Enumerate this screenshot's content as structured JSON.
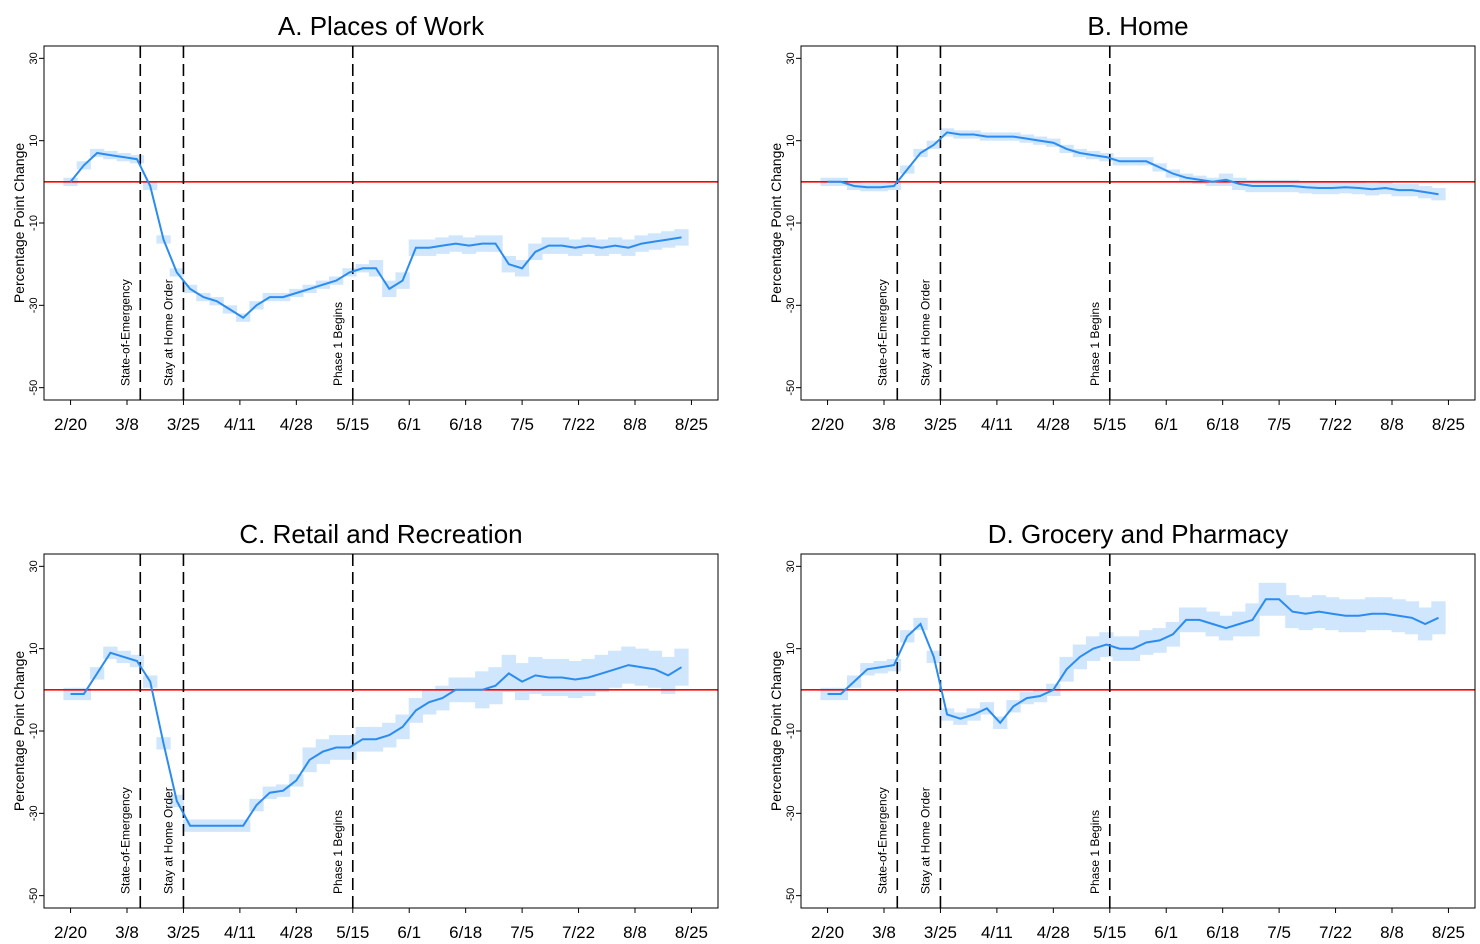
{
  "chart_data": [
    {
      "type": "line",
      "title": "A. Places of Work",
      "y_label": "Percentage Point Change",
      "x": [
        "2/20",
        "2/24",
        "2/28",
        "3/3",
        "3/7",
        "3/11",
        "3/15",
        "3/19",
        "3/23",
        "3/27",
        "3/31",
        "4/4",
        "4/8",
        "4/12",
        "4/16",
        "4/20",
        "4/24",
        "4/28",
        "5/2",
        "5/6",
        "5/10",
        "5/14",
        "5/18",
        "5/22",
        "5/26",
        "5/30",
        "6/3",
        "6/7",
        "6/11",
        "6/15",
        "6/19",
        "6/23",
        "6/27",
        "7/1",
        "7/5",
        "7/9",
        "7/13",
        "7/17",
        "7/21",
        "7/25",
        "7/29",
        "8/2",
        "8/6",
        "8/10",
        "8/14",
        "8/18",
        "8/22"
      ],
      "series": [
        {
          "color": "#2b8cf0",
          "band_color": "#cfe6fd",
          "values": [
            0,
            4,
            7,
            6.5,
            6,
            5.5,
            -1,
            -14,
            -22,
            -26,
            -28,
            -29,
            -31,
            -33,
            -30,
            -28,
            -28,
            -27,
            -26,
            -25,
            -24,
            -22,
            -21,
            -21,
            -26,
            -24,
            -16,
            -16,
            -15.5,
            -15,
            -15.5,
            -15,
            -15,
            -20,
            -21,
            -17,
            -15.5,
            -15.5,
            -16,
            -15.5,
            -16,
            -15.5,
            -16,
            -15,
            -14.5,
            -14,
            -13.5
          ],
          "error": [
            1,
            1,
            1,
            1,
            1,
            1,
            1,
            1,
            1,
            1,
            1,
            1,
            1,
            1,
            1,
            1,
            1,
            1,
            1,
            1,
            1,
            1,
            1,
            2,
            2,
            2,
            2,
            2,
            2,
            2,
            2,
            2,
            2,
            2,
            2,
            2,
            2,
            2,
            2,
            2,
            2,
            2,
            2,
            2,
            2,
            2,
            2
          ]
        }
      ],
      "hline": {
        "value": 0,
        "color": "#ff0000"
      },
      "events": [
        {
          "x": "3/12",
          "label": "State-of-Emergency"
        },
        {
          "x": "3/25",
          "label": "Stay at Home Order"
        },
        {
          "x": "5/15",
          "label": "Phase 1 Begins"
        }
      ],
      "xlim": [
        "2/12",
        "9/2"
      ],
      "xticks": [
        "2/20",
        "3/8",
        "3/25",
        "4/11",
        "4/28",
        "5/15",
        "6/1",
        "6/18",
        "7/5",
        "7/22",
        "8/8",
        "8/25"
      ],
      "ylim": [
        -53,
        33
      ],
      "yticks": [
        30,
        10,
        -10,
        -30,
        -50
      ]
    },
    {
      "type": "line",
      "title": "B. Home",
      "y_label": "Percentage Point Change",
      "x": [
        "2/20",
        "2/24",
        "2/28",
        "3/3",
        "3/7",
        "3/11",
        "3/15",
        "3/19",
        "3/23",
        "3/27",
        "3/31",
        "4/4",
        "4/8",
        "4/12",
        "4/16",
        "4/20",
        "4/24",
        "4/28",
        "5/2",
        "5/6",
        "5/10",
        "5/14",
        "5/18",
        "5/22",
        "5/26",
        "5/30",
        "6/3",
        "6/7",
        "6/11",
        "6/15",
        "6/19",
        "6/23",
        "6/27",
        "7/1",
        "7/5",
        "7/9",
        "7/13",
        "7/17",
        "7/21",
        "7/25",
        "7/29",
        "8/2",
        "8/6",
        "8/10",
        "8/14",
        "8/18",
        "8/22"
      ],
      "series": [
        {
          "color": "#2b8cf0",
          "band_color": "#cfe6fd",
          "values": [
            0,
            0,
            -1,
            -1.3,
            -1.3,
            -1,
            3,
            7,
            9,
            12,
            11.5,
            11.5,
            11,
            11,
            11,
            10.5,
            10,
            9.5,
            8,
            7,
            6.5,
            6,
            5,
            5,
            5,
            3.5,
            2,
            1,
            0.5,
            0,
            0.5,
            -0.5,
            -1,
            -1,
            -1,
            -1,
            -1.3,
            -1.5,
            -1.5,
            -1.3,
            -1.5,
            -1.8,
            -1.5,
            -2,
            -2,
            -2.5,
            -3
          ],
          "error": [
            1,
            1,
            1,
            1,
            1,
            1,
            1,
            1,
            1,
            1,
            1,
            1,
            1,
            1,
            1,
            1,
            1,
            1,
            1,
            1,
            1,
            1,
            1,
            1,
            1,
            1,
            1,
            1,
            1,
            1,
            1.5,
            1.5,
            1.5,
            1.5,
            1.5,
            1.5,
            1.5,
            1.5,
            1.5,
            1.5,
            1.5,
            1.5,
            1.5,
            1.5,
            1.5,
            1.5,
            1.5
          ]
        }
      ],
      "hline": {
        "value": 0,
        "color": "#ff0000"
      },
      "events": [
        {
          "x": "3/12",
          "label": "State-of-Emergency"
        },
        {
          "x": "3/25",
          "label": "Stay at Home Order"
        },
        {
          "x": "5/15",
          "label": "Phase 1 Begins"
        }
      ],
      "xlim": [
        "2/12",
        "9/2"
      ],
      "xticks": [
        "2/20",
        "3/8",
        "3/25",
        "4/11",
        "4/28",
        "5/15",
        "6/1",
        "6/18",
        "7/5",
        "7/22",
        "8/8",
        "8/25"
      ],
      "ylim": [
        -53,
        33
      ],
      "yticks": [
        30,
        10,
        -10,
        -30,
        -50
      ]
    },
    {
      "type": "line",
      "title": "C. Retail and Recreation",
      "y_label": "Percentage Point Change",
      "x": [
        "2/20",
        "2/24",
        "2/28",
        "3/3",
        "3/7",
        "3/11",
        "3/15",
        "3/19",
        "3/23",
        "3/27",
        "3/31",
        "4/4",
        "4/8",
        "4/12",
        "4/16",
        "4/20",
        "4/24",
        "4/28",
        "5/2",
        "5/6",
        "5/10",
        "5/14",
        "5/18",
        "5/22",
        "5/26",
        "5/30",
        "6/3",
        "6/7",
        "6/11",
        "6/15",
        "6/19",
        "6/23",
        "6/27",
        "7/1",
        "7/5",
        "7/9",
        "7/13",
        "7/17",
        "7/21",
        "7/25",
        "7/29",
        "8/2",
        "8/6",
        "8/10",
        "8/14",
        "8/18",
        "8/22"
      ],
      "series": [
        {
          "color": "#2b8cf0",
          "band_color": "#cfe6fd",
          "values": [
            -1,
            -1,
            4,
            9,
            8,
            7,
            2,
            -13,
            -27,
            -33,
            -33,
            -33,
            -33,
            -33,
            -28,
            -25,
            -24.5,
            -22,
            -17,
            -15,
            -14,
            -14,
            -12,
            -12,
            -11,
            -9,
            -5,
            -3,
            -2,
            0,
            0,
            0,
            1,
            4,
            2,
            3.5,
            3,
            3,
            2.5,
            3,
            4,
            5,
            6,
            5.5,
            5,
            3.5,
            5.5
          ],
          "error": [
            1.5,
            1.5,
            1.5,
            1.5,
            1.5,
            1.5,
            1.5,
            1.5,
            1.5,
            1.5,
            1.5,
            1.5,
            1.5,
            1.5,
            1.5,
            1.5,
            1.5,
            1.5,
            3,
            3,
            3,
            3,
            3,
            3,
            3,
            3,
            3,
            3,
            3,
            3,
            3,
            4.5,
            4.5,
            4.5,
            4.5,
            4.5,
            4.5,
            4.5,
            4.5,
            4.5,
            4.5,
            4.5,
            4.5,
            4.5,
            4.5,
            4.5,
            4.5
          ]
        }
      ],
      "hline": {
        "value": 0,
        "color": "#ff0000"
      },
      "events": [
        {
          "x": "3/12",
          "label": "State-of-Emergency"
        },
        {
          "x": "3/25",
          "label": "Stay at Home Order"
        },
        {
          "x": "5/15",
          "label": "Phase 1 Begins"
        }
      ],
      "xlim": [
        "2/12",
        "9/2"
      ],
      "xticks": [
        "2/20",
        "3/8",
        "3/25",
        "4/11",
        "4/28",
        "5/15",
        "6/1",
        "6/18",
        "7/5",
        "7/22",
        "8/8",
        "8/25"
      ],
      "ylim": [
        -53,
        33
      ],
      "yticks": [
        30,
        10,
        -10,
        -30,
        -50
      ]
    },
    {
      "type": "line",
      "title": "D. Grocery and Pharmacy",
      "y_label": "Percentage Point Change",
      "x": [
        "2/20",
        "2/24",
        "2/28",
        "3/3",
        "3/7",
        "3/11",
        "3/15",
        "3/19",
        "3/23",
        "3/27",
        "3/31",
        "4/4",
        "4/8",
        "4/12",
        "4/16",
        "4/20",
        "4/24",
        "4/28",
        "5/2",
        "5/6",
        "5/10",
        "5/14",
        "5/18",
        "5/22",
        "5/26",
        "5/30",
        "6/3",
        "6/7",
        "6/11",
        "6/15",
        "6/19",
        "6/23",
        "6/27",
        "7/1",
        "7/5",
        "7/9",
        "7/13",
        "7/17",
        "7/21",
        "7/25",
        "7/29",
        "8/2",
        "8/6",
        "8/10",
        "8/14",
        "8/18",
        "8/22"
      ],
      "series": [
        {
          "color": "#2b8cf0",
          "band_color": "#cfe6fd",
          "values": [
            -1,
            -1,
            2,
            5,
            5.5,
            6,
            13,
            16,
            8,
            -6,
            -7,
            -6,
            -4.5,
            -8,
            -4,
            -2,
            -1.5,
            0,
            5,
            8,
            10,
            11,
            10,
            10,
            11.5,
            12,
            13.5,
            17,
            17,
            16,
            15,
            16,
            17,
            22,
            22,
            19,
            18.5,
            19,
            18.5,
            18,
            18,
            18.5,
            18.5,
            18,
            17.5,
            16,
            17.5
          ],
          "error": [
            1.5,
            1.5,
            1.5,
            1.5,
            1.5,
            1.5,
            1.5,
            1.5,
            1.5,
            1.5,
            1.5,
            1.5,
            1.5,
            1.5,
            1.5,
            1.5,
            1.5,
            1.5,
            3,
            3,
            3,
            3,
            3,
            3,
            3,
            3,
            3,
            3,
            3,
            3,
            3,
            3,
            4,
            4,
            4,
            4,
            4,
            4,
            4,
            4,
            4,
            4,
            4,
            4,
            4,
            4,
            4
          ]
        }
      ],
      "hline": {
        "value": 0,
        "color": "#ff0000"
      },
      "events": [
        {
          "x": "3/12",
          "label": "State-of-Emergency"
        },
        {
          "x": "3/25",
          "label": "Stay at Home Order"
        },
        {
          "x": "5/15",
          "label": "Phase 1 Begins"
        }
      ],
      "xlim": [
        "2/12",
        "9/2"
      ],
      "xticks": [
        "2/20",
        "3/8",
        "3/25",
        "4/11",
        "4/28",
        "5/15",
        "6/1",
        "6/18",
        "7/5",
        "7/22",
        "8/8",
        "8/25"
      ],
      "ylim": [
        -53,
        33
      ],
      "yticks": [
        30,
        10,
        -10,
        -30,
        -50
      ]
    }
  ]
}
